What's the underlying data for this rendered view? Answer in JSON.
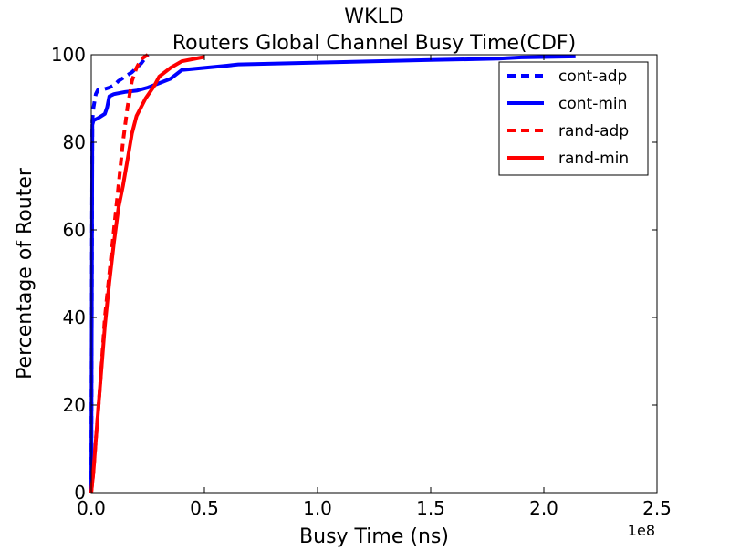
{
  "chart_data": {
    "type": "line",
    "title": "WKLD",
    "subtitle": "Routers Global Channel Busy Time(CDF)",
    "xlabel": "Busy Time (ns)",
    "ylabel": "Percentage of Router",
    "x_offset_label": "1e8",
    "x_scale": 100000000,
    "xlim": [
      0,
      2.5
    ],
    "ylim": [
      0,
      100
    ],
    "xticks": [
      "0.0",
      "0.5",
      "1.0",
      "1.5",
      "2.0",
      "2.5"
    ],
    "xtick_values": [
      0,
      0.5,
      1.0,
      1.5,
      2.0,
      2.5
    ],
    "yticks": [
      "0",
      "20",
      "40",
      "60",
      "80",
      "100"
    ],
    "ytick_values": [
      0,
      20,
      40,
      60,
      80,
      100
    ],
    "grid": false,
    "legend_position": "top-right",
    "series": [
      {
        "name": "cont-adp",
        "color": "#0000ff",
        "dash": "dashed",
        "x": [
          0.0,
          0.005,
          0.01,
          0.02,
          0.03,
          0.05,
          0.08,
          0.1,
          0.12,
          0.15,
          0.18,
          0.2,
          0.22,
          0.25
        ],
        "y": [
          0,
          85,
          88,
          91,
          92,
          92,
          92.5,
          93,
          94,
          95,
          96,
          97,
          98,
          100
        ]
      },
      {
        "name": "cont-min",
        "color": "#0000ff",
        "dash": "solid",
        "x": [
          0.0,
          0.005,
          0.01,
          0.03,
          0.06,
          0.07,
          0.08,
          0.1,
          0.15,
          0.2,
          0.25,
          0.3,
          0.35,
          0.4,
          0.5,
          0.6,
          0.65,
          1.0,
          1.5,
          1.8,
          1.9,
          2.14
        ],
        "y": [
          0,
          84,
          85,
          85.5,
          86.5,
          88,
          90.5,
          91,
          91.5,
          91.8,
          92.5,
          93.5,
          94.5,
          96.5,
          97,
          97.5,
          97.8,
          98.2,
          98.8,
          99.1,
          99.4,
          99.6
        ]
      },
      {
        "name": "rand-adp",
        "color": "#ff0000",
        "dash": "dashed",
        "x": [
          0.0,
          0.01,
          0.02,
          0.04,
          0.06,
          0.08,
          0.1,
          0.12,
          0.14,
          0.16,
          0.18,
          0.2,
          0.22,
          0.25
        ],
        "y": [
          0,
          5,
          12,
          25,
          40,
          50,
          60,
          70,
          80,
          88,
          94,
          97,
          99,
          100
        ]
      },
      {
        "name": "rand-min",
        "color": "#ff0000",
        "dash": "solid",
        "x": [
          0.0,
          0.01,
          0.02,
          0.04,
          0.06,
          0.08,
          0.1,
          0.12,
          0.14,
          0.16,
          0.18,
          0.2,
          0.24,
          0.28,
          0.3,
          0.35,
          0.4,
          0.5
        ],
        "y": [
          0,
          5,
          12,
          25,
          38,
          48,
          57,
          65,
          70,
          76,
          82,
          86,
          90,
          93,
          95,
          97,
          98.5,
          99.5
        ]
      }
    ]
  }
}
